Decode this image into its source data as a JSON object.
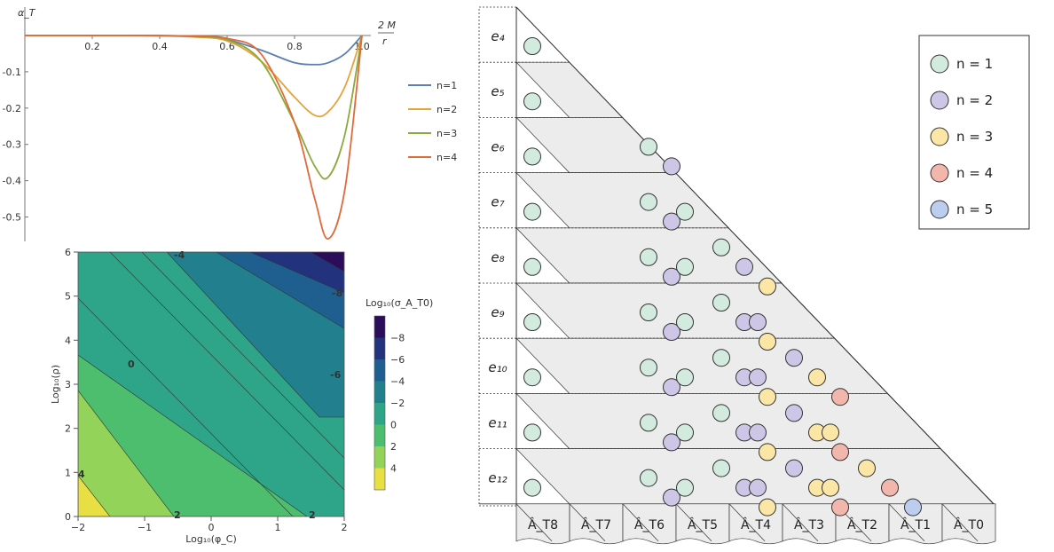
{
  "line_chart": {
    "y_label": "α_T",
    "x_label_top": "2 M",
    "x_label_bottom": "r",
    "x_ticks": [
      "0.2",
      "0.4",
      "0.6",
      "0.8",
      "1.0"
    ],
    "y_ticks": [
      "-0.1",
      "-0.2",
      "-0.3",
      "-0.4",
      "-0.5"
    ],
    "legend": [
      {
        "label": "n=1",
        "color": "#5b7fb5"
      },
      {
        "label": "n=2",
        "color": "#e5a33a"
      },
      {
        "label": "n=3",
        "color": "#8aab3a"
      },
      {
        "label": "n=4",
        "color": "#e06a3a"
      }
    ]
  },
  "contour_chart": {
    "x_label": "Log₁₀(φ_C)",
    "y_label": "Log₁₀(ρ)",
    "x_ticks": [
      "-2",
      "-1",
      "0",
      "1",
      "2"
    ],
    "y_ticks": [
      "0",
      "1",
      "2",
      "3",
      "4",
      "5",
      "6"
    ],
    "contour_labels": [
      "-4",
      "-8",
      "0",
      "-6",
      "2",
      "2",
      "4"
    ],
    "colorbar_title": "Log₁₀(σ_A_T0)",
    "colorbar_ticks": [
      "-8",
      "-6",
      "-4",
      "-2",
      "0",
      "2",
      "4"
    ],
    "colorbar_colors": [
      "#2b0d5c",
      "#22327d",
      "#1f5f8f",
      "#22808e",
      "#2ea488",
      "#4cbe6e",
      "#93d35a",
      "#e8df45"
    ]
  },
  "chart_data": [
    {
      "type": "line",
      "xlim": [
        0,
        1.0
      ],
      "ylim": [
        -0.55,
        0
      ],
      "x": [
        0,
        0.3,
        0.4,
        0.5,
        0.6,
        0.7,
        0.8,
        0.86,
        0.9,
        0.95,
        1.0
      ],
      "series": [
        {
          "name": "n=1",
          "values": [
            0,
            0,
            -0.001,
            -0.003,
            -0.012,
            -0.04,
            -0.075,
            -0.08,
            -0.075,
            -0.05,
            0
          ]
        },
        {
          "name": "n=2",
          "values": [
            0,
            0,
            -0.001,
            -0.004,
            -0.015,
            -0.07,
            -0.17,
            -0.22,
            -0.21,
            -0.14,
            0
          ]
        },
        {
          "name": "n=3",
          "values": [
            0,
            0,
            0,
            -0.003,
            -0.012,
            -0.07,
            -0.24,
            -0.36,
            -0.39,
            -0.27,
            0
          ]
        },
        {
          "name": "n=4",
          "values": [
            0,
            0,
            0,
            -0.002,
            -0.008,
            -0.05,
            -0.24,
            -0.45,
            -0.56,
            -0.42,
            0
          ]
        }
      ]
    },
    {
      "type": "heatmap",
      "xlim": [
        -2,
        2
      ],
      "ylim": [
        0,
        6
      ],
      "levels": [
        -8,
        -6,
        -4,
        -2,
        0,
        2,
        4
      ]
    }
  ],
  "diagram": {
    "rows": [
      "e₄",
      "e₅",
      "e₆",
      "e₇",
      "e₈",
      "e₉",
      "e₁₀",
      "e₁₁",
      "e₁₂"
    ],
    "columns": [
      "Â_T8",
      "Â_T7",
      "Â_T6",
      "Â_T5",
      "Â_T4",
      "Â_T3",
      "Â_T2",
      "Â_T1",
      "Â_T0"
    ],
    "legend": [
      {
        "label": "n = 1",
        "color": "#d3eadf"
      },
      {
        "label": "n = 2",
        "color": "#cdc6e6"
      },
      {
        "label": "n = 3",
        "color": "#fbe6a6"
      },
      {
        "label": "n = 4",
        "color": "#f3b6ad"
      },
      {
        "label": "n = 5",
        "color": "#bccdf0"
      }
    ]
  }
}
